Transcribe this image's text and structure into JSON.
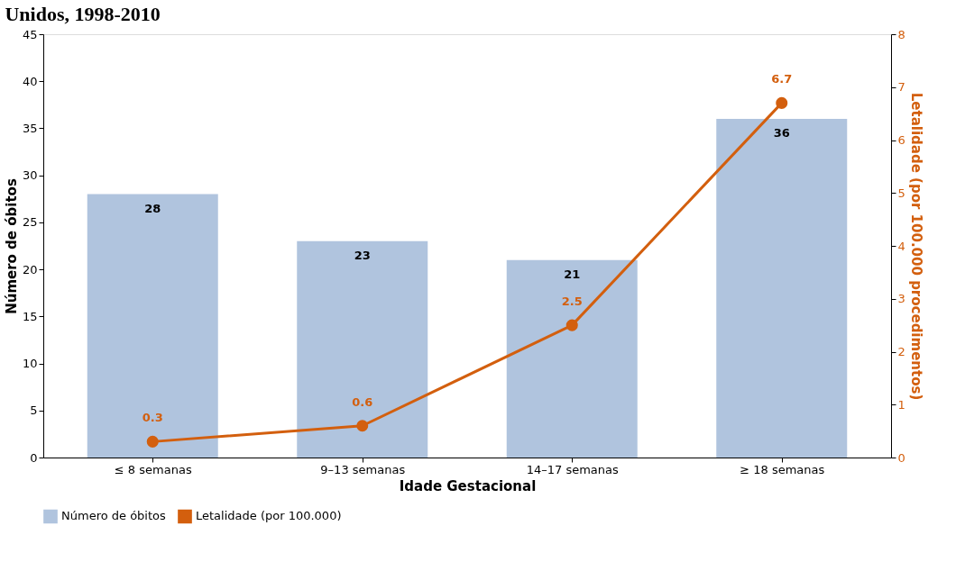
{
  "chart_data": {
    "type": "bar",
    "title": "Unidos, 1998-2010",
    "xlabel": "Idade Gestacional",
    "ylabel": "Número de óbitos",
    "y2label": "Letalidade (por 100.000 procedimentos)",
    "categories": [
      "≤ 8 semanas",
      "9–13 semanas",
      "14–17 semanas",
      "≥ 18 semanas"
    ],
    "series": [
      {
        "name": "Número de óbitos",
        "color": "#b0c4de",
        "values": [
          28,
          23,
          21,
          36
        ]
      },
      {
        "name": "Letalidade (por 100.000)",
        "type": "line",
        "axis": "y2",
        "color": "#d35f0e",
        "marker": "circle",
        "values": [
          0.3,
          0.6,
          2.5,
          6.7
        ]
      }
    ],
    "ylim": [
      0,
      45
    ],
    "yticks": [
      0,
      5,
      10,
      15,
      20,
      25,
      30,
      35,
      40,
      45
    ],
    "y2lim": [
      0,
      8
    ],
    "y2ticks": [
      0,
      1,
      2,
      3,
      4,
      5,
      6,
      7,
      8
    ],
    "data_labels": true,
    "legend": "bottom",
    "grid": false
  }
}
